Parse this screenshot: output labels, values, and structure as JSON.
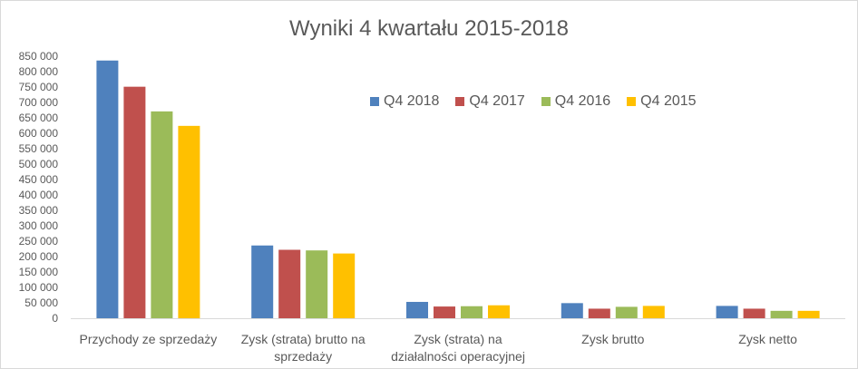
{
  "chart_data": {
    "type": "bar",
    "title": "Wyniki 4 kwartału 2015-2018",
    "categories": [
      [
        "Przychody ze sprzedaży"
      ],
      [
        "Zysk (strata) brutto na",
        "sprzedaży"
      ],
      [
        "Zysk (strata) na",
        "działalności operacyjnej"
      ],
      [
        "Zysk brutto"
      ],
      [
        "Zysk netto"
      ]
    ],
    "series": [
      {
        "name": "Q4 2018",
        "color": "#4f81bd",
        "values": [
          836000,
          236000,
          53000,
          49000,
          40000
        ]
      },
      {
        "name": "Q4 2017",
        "color": "#c0504d",
        "values": [
          751000,
          222000,
          38000,
          31000,
          31000
        ]
      },
      {
        "name": "Q4 2016",
        "color": "#9bbb59",
        "values": [
          671000,
          220000,
          39000,
          37000,
          24000
        ]
      },
      {
        "name": "Q4 2015",
        "color": "#ffc000",
        "values": [
          624000,
          210000,
          42000,
          40000,
          24000
        ]
      }
    ],
    "ylim": [
      0,
      850000
    ],
    "yticks": [
      "0",
      "50 000",
      "100 000",
      "150 000",
      "200 000",
      "250 000",
      "300 000",
      "350 000",
      "400 000",
      "450 000",
      "500 000",
      "550 000",
      "600 000",
      "650 000",
      "700 000",
      "750 000",
      "800 000",
      "850 000"
    ],
    "grid": false,
    "legend_position": "top-right"
  }
}
